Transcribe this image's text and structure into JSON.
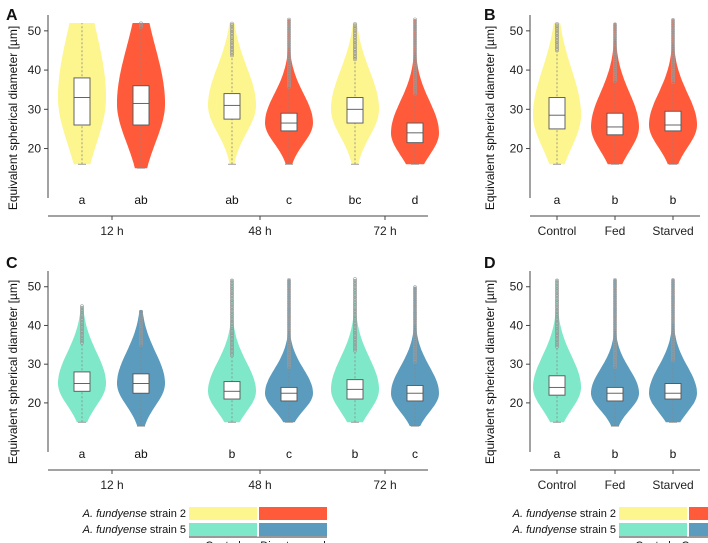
{
  "colors": {
    "strain2_control": "#fdf58d",
    "strain2_grazed": "#ff5a3a",
    "strain5_control": "#7ee8c8",
    "strain5_grazed": "#5b9bbd"
  },
  "legend_left": {
    "row1": "A. fundyense strain 2",
    "row2": "A. fundyense strain 5",
    "col1": "Control",
    "col2": "Direct grazed"
  },
  "legend_right": {
    "row1": "A. fundyense strain 2",
    "row2": "A. fundyense strain 5",
    "col1": "Control",
    "col2": "Caged copepods"
  },
  "chart_data": [
    {
      "panel": "A",
      "type": "violin",
      "ylabel": "Equivalent spherical diameter [µm]",
      "ylim": [
        13,
        52
      ],
      "yticks": [
        20,
        30,
        40,
        50
      ],
      "groups": [
        "12 h",
        "48 h",
        "72 h"
      ],
      "series": [
        "Control",
        "Direct grazed"
      ],
      "violins": [
        {
          "group": "12 h",
          "series": "Control",
          "color": "strain2_control",
          "median": 33,
          "q1": 26,
          "q3": 38,
          "min": 16,
          "max": 52,
          "sig": "a"
        },
        {
          "group": "12 h",
          "series": "Direct grazed",
          "color": "strain2_grazed",
          "median": 31.5,
          "q1": 26,
          "q3": 36,
          "min": 15,
          "max": 52,
          "sig": "ab"
        },
        {
          "group": "48 h",
          "series": "Control",
          "color": "strain2_control",
          "median": 31,
          "q1": 27.5,
          "q3": 34,
          "min": 16,
          "max": 52,
          "sig": "ab"
        },
        {
          "group": "48 h",
          "series": "Direct grazed",
          "color": "strain2_grazed",
          "median": 26.5,
          "q1": 24.5,
          "q3": 29,
          "min": 16,
          "max": 53,
          "sig": "c"
        },
        {
          "group": "72 h",
          "series": "Control",
          "color": "strain2_control",
          "median": 30,
          "q1": 26.5,
          "q3": 33,
          "min": 16,
          "max": 52,
          "sig": "bc"
        },
        {
          "group": "72 h",
          "series": "Direct grazed",
          "color": "strain2_grazed",
          "median": 24,
          "q1": 21.5,
          "q3": 26.5,
          "min": 16,
          "max": 53,
          "sig": "d"
        }
      ]
    },
    {
      "panel": "B",
      "type": "violin",
      "ylabel": "Equivalent spherical diameter [µm]",
      "ylim": [
        13,
        52
      ],
      "yticks": [
        20,
        30,
        40,
        50
      ],
      "groups": [
        "Control",
        "Fed",
        "Starved"
      ],
      "violins": [
        {
          "group": "Control",
          "color": "strain2_control",
          "median": 28.5,
          "q1": 25,
          "q3": 33,
          "min": 16,
          "max": 52,
          "sig": "a"
        },
        {
          "group": "Fed",
          "color": "strain2_grazed",
          "median": 25.5,
          "q1": 23.5,
          "q3": 29,
          "min": 16,
          "max": 52,
          "sig": "b"
        },
        {
          "group": "Starved",
          "color": "strain2_grazed",
          "median": 26,
          "q1": 24.5,
          "q3": 29.5,
          "min": 16,
          "max": 53,
          "sig": "b"
        }
      ]
    },
    {
      "panel": "C",
      "type": "violin",
      "ylabel": "Equivalent spherical diameter [µm]",
      "ylim": [
        13,
        52
      ],
      "yticks": [
        20,
        30,
        40,
        50
      ],
      "groups": [
        "12 h",
        "48 h",
        "72 h"
      ],
      "series": [
        "Control",
        "Direct grazed"
      ],
      "violins": [
        {
          "group": "12 h",
          "series": "Control",
          "color": "strain5_control",
          "median": 25,
          "q1": 23,
          "q3": 28,
          "min": 15,
          "max": 45,
          "sig": "a"
        },
        {
          "group": "12 h",
          "series": "Direct grazed",
          "color": "strain5_grazed",
          "median": 25,
          "q1": 22.5,
          "q3": 27.5,
          "min": 14,
          "max": 44,
          "sig": "ab"
        },
        {
          "group": "48 h",
          "series": "Control",
          "color": "strain5_control",
          "median": 23,
          "q1": 21,
          "q3": 25.5,
          "min": 15,
          "max": 52,
          "sig": "b"
        },
        {
          "group": "48 h",
          "series": "Direct grazed",
          "color": "strain5_grazed",
          "median": 22.5,
          "q1": 20.5,
          "q3": 24,
          "min": 15,
          "max": 52,
          "sig": "c"
        },
        {
          "group": "72 h",
          "series": "Control",
          "color": "strain5_control",
          "median": 23.5,
          "q1": 21,
          "q3": 26,
          "min": 15,
          "max": 52,
          "sig": "b"
        },
        {
          "group": "72 h",
          "series": "Direct grazed",
          "color": "strain5_grazed",
          "median": 22.5,
          "q1": 20.5,
          "q3": 24.5,
          "min": 14,
          "max": 50,
          "sig": "c"
        }
      ]
    },
    {
      "panel": "D",
      "type": "violin",
      "ylabel": "Equivalent spherical diameter [µm]",
      "ylim": [
        13,
        52
      ],
      "yticks": [
        20,
        30,
        40,
        50
      ],
      "groups": [
        "Control",
        "Fed",
        "Starved"
      ],
      "violins": [
        {
          "group": "Control",
          "color": "strain5_control",
          "median": 24,
          "q1": 22,
          "q3": 27,
          "min": 15,
          "max": 52,
          "sig": "a"
        },
        {
          "group": "Fed",
          "color": "strain5_grazed",
          "median": 22.5,
          "q1": 20.5,
          "q3": 24,
          "min": 14,
          "max": 52,
          "sig": "b"
        },
        {
          "group": "Starved",
          "color": "strain5_grazed",
          "median": 22.5,
          "q1": 21,
          "q3": 25,
          "min": 15,
          "max": 52,
          "sig": "b"
        }
      ]
    }
  ]
}
